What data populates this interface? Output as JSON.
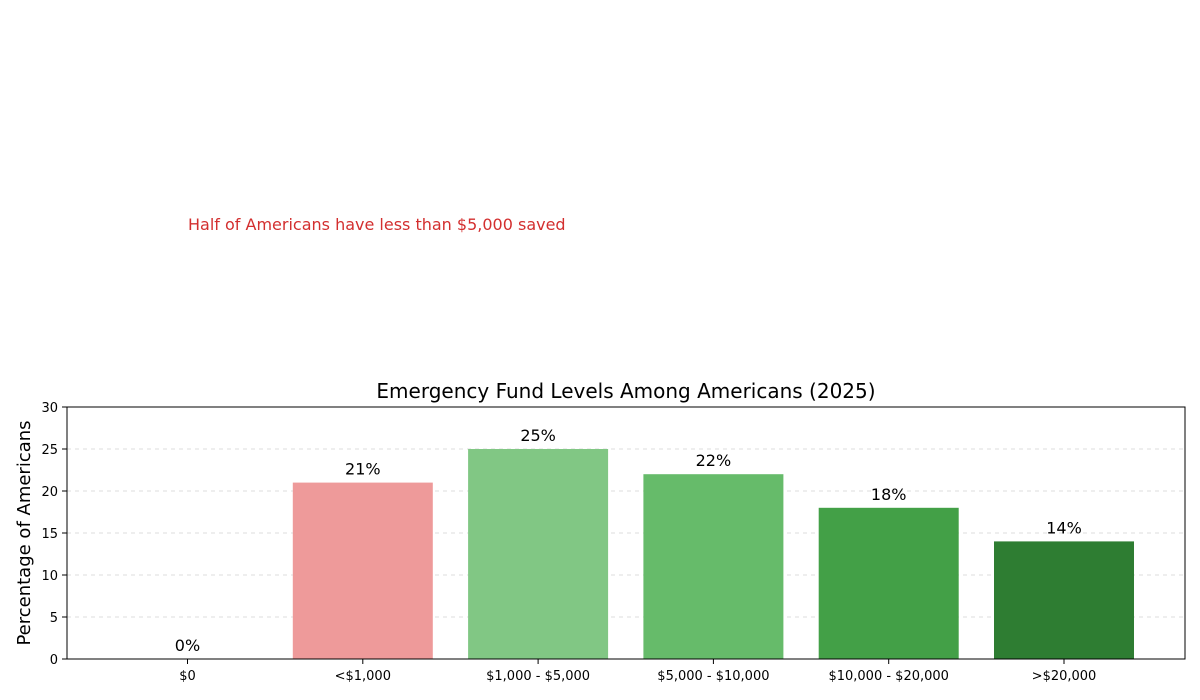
{
  "chart_data": {
    "type": "bar",
    "title": "Emergency Fund Levels Among Americans (2025)",
    "xlabel": "",
    "ylabel": "Percentage of Americans",
    "categories": [
      "$0",
      "<$1,000",
      "$1,000 - $5,000",
      "$5,000 - $10,000",
      "$10,000 - $20,000",
      ">$20,000"
    ],
    "values": [
      0,
      21,
      25,
      22,
      18,
      14
    ],
    "data_labels": [
      "0%",
      "21%",
      "25%",
      "22%",
      "18%",
      "14%"
    ],
    "colors": [
      "#e05a5a",
      "#ee9a9a",
      "#81c784",
      "#66bb6a",
      "#43a047",
      "#2e7d32"
    ],
    "ylim": [
      0,
      30
    ],
    "yticks": [
      0,
      5,
      10,
      15,
      20,
      25,
      30
    ],
    "grid": true,
    "annotation": {
      "text": "Half of Americans have less than $5,000 saved",
      "color": "#d32f2f"
    }
  }
}
